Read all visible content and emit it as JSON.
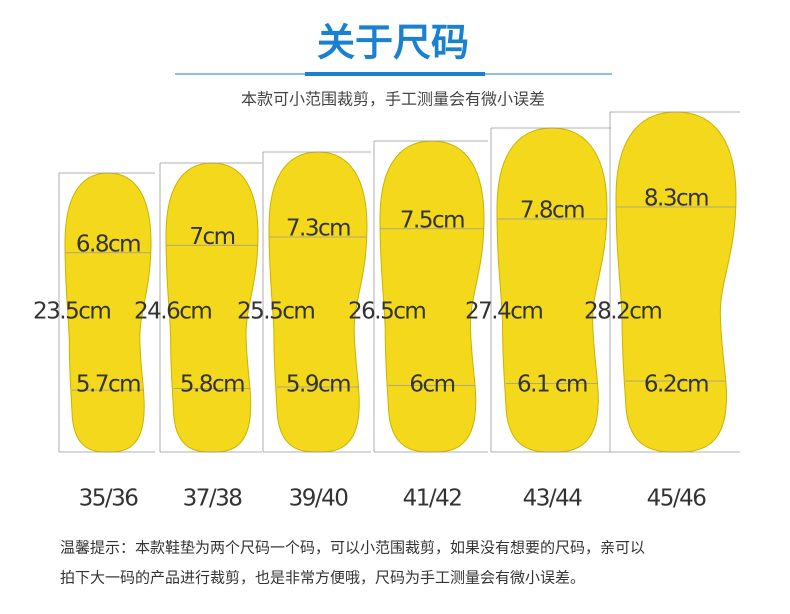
{
  "header": {
    "title": "关于尺码",
    "subtitle": "本款可小范围裁剪，手工测量会有微小误差"
  },
  "insoles": [
    {
      "size": "35/36",
      "length": "23.5cm",
      "forefoot": "6.8cm",
      "heel": "5.7cm"
    },
    {
      "size": "37/38",
      "length": "24.6cm",
      "forefoot": "7cm",
      "heel": "5.8cm"
    },
    {
      "size": "39/40",
      "length": "25.5cm",
      "forefoot": "7.3cm",
      "heel": "5.9cm"
    },
    {
      "size": "41/42",
      "length": "26.5cm",
      "forefoot": "7.5cm",
      "heel": "6cm"
    },
    {
      "size": "43/44",
      "length": "27.4cm",
      "forefoot": "7.8cm",
      "heel": "6.1 cm"
    },
    {
      "size": "45/46",
      "length": "28.2cm",
      "forefoot": "8.3cm",
      "heel": "6.2cm"
    }
  ],
  "note": {
    "lines": [
      "温馨提示：本款鞋垫为两个尺码一个码，可以小范围裁剪，如果没有想要的尺码，亲可以",
      "拍下大一码的产品进行裁剪，也是非常方便哦，尺码为手工测量会有微小误差。"
    ]
  }
}
